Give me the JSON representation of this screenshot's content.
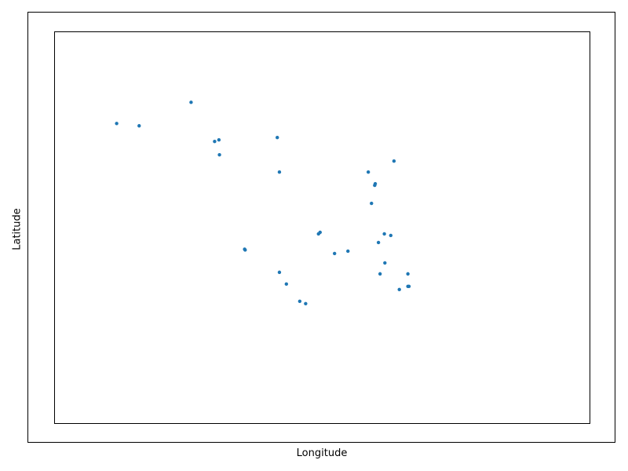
{
  "chart_data": {
    "type": "scatter",
    "title": "",
    "xlabel": "Longitude",
    "ylabel": "Latitude",
    "xlim": [
      0,
      100
    ],
    "ylim": [
      0,
      100
    ],
    "grid": false,
    "ticks_visible": false,
    "marker_color": "#1f77b4",
    "points": [
      {
        "x": 11.6,
        "y": 76.6
      },
      {
        "x": 15.8,
        "y": 76.0
      },
      {
        "x": 25.5,
        "y": 82.0
      },
      {
        "x": 29.9,
        "y": 72.0
      },
      {
        "x": 30.7,
        "y": 72.4
      },
      {
        "x": 30.8,
        "y": 68.6
      },
      {
        "x": 35.5,
        "y": 44.5
      },
      {
        "x": 35.6,
        "y": 44.3
      },
      {
        "x": 41.6,
        "y": 73.0
      },
      {
        "x": 42.0,
        "y": 64.2
      },
      {
        "x": 42.0,
        "y": 38.6
      },
      {
        "x": 43.3,
        "y": 35.6
      },
      {
        "x": 45.8,
        "y": 31.2
      },
      {
        "x": 46.9,
        "y": 30.6
      },
      {
        "x": 49.3,
        "y": 48.4
      },
      {
        "x": 49.6,
        "y": 48.8
      },
      {
        "x": 52.3,
        "y": 43.4
      },
      {
        "x": 54.8,
        "y": 44.0
      },
      {
        "x": 58.6,
        "y": 64.2
      },
      {
        "x": 59.2,
        "y": 56.2
      },
      {
        "x": 59.8,
        "y": 60.8
      },
      {
        "x": 59.9,
        "y": 61.2
      },
      {
        "x": 60.5,
        "y": 46.2
      },
      {
        "x": 60.8,
        "y": 38.2
      },
      {
        "x": 61.6,
        "y": 48.4
      },
      {
        "x": 61.7,
        "y": 41.0
      },
      {
        "x": 62.8,
        "y": 48.0
      },
      {
        "x": 63.4,
        "y": 67.0
      },
      {
        "x": 64.4,
        "y": 34.2
      },
      {
        "x": 66.0,
        "y": 38.2
      },
      {
        "x": 66.0,
        "y": 35.0
      },
      {
        "x": 66.2,
        "y": 35.0
      }
    ]
  }
}
